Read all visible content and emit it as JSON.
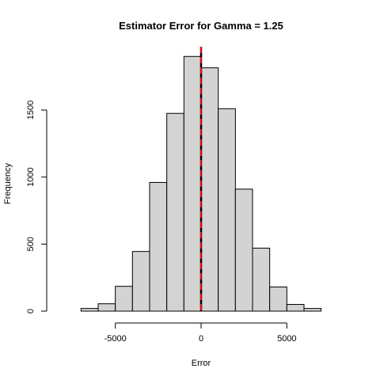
{
  "chart_data": {
    "type": "bar",
    "title": "Estimator Error for Gamma =  1.25",
    "xlabel": "Error",
    "ylabel": "Frequency",
    "xlim": [
      -9000,
      9000
    ],
    "ylim": [
      0,
      2000
    ],
    "x_ticks": [
      -5000,
      0,
      5000
    ],
    "x_tick_labels": [
      "-5000",
      "0",
      "5000"
    ],
    "y_ticks": [
      0,
      500,
      1000,
      1500
    ],
    "y_tick_labels": [
      "0",
      "500",
      "1000",
      "1500"
    ],
    "bin_edges": [
      -7000,
      -6000,
      -5000,
      -4000,
      -3000,
      -2000,
      -1000,
      0,
      1000,
      2000,
      3000,
      4000,
      5000,
      6000,
      7000
    ],
    "values": [
      20,
      55,
      185,
      445,
      960,
      1475,
      1900,
      1815,
      1510,
      910,
      470,
      180,
      50,
      20
    ],
    "reference_lines": [
      {
        "x": 0,
        "color": "#000000",
        "style": "solid"
      },
      {
        "x": 0,
        "color": "#ff0000",
        "style": "dashed"
      }
    ],
    "grid": false,
    "legend": "none",
    "bar_fill": "#d3d3d3"
  }
}
